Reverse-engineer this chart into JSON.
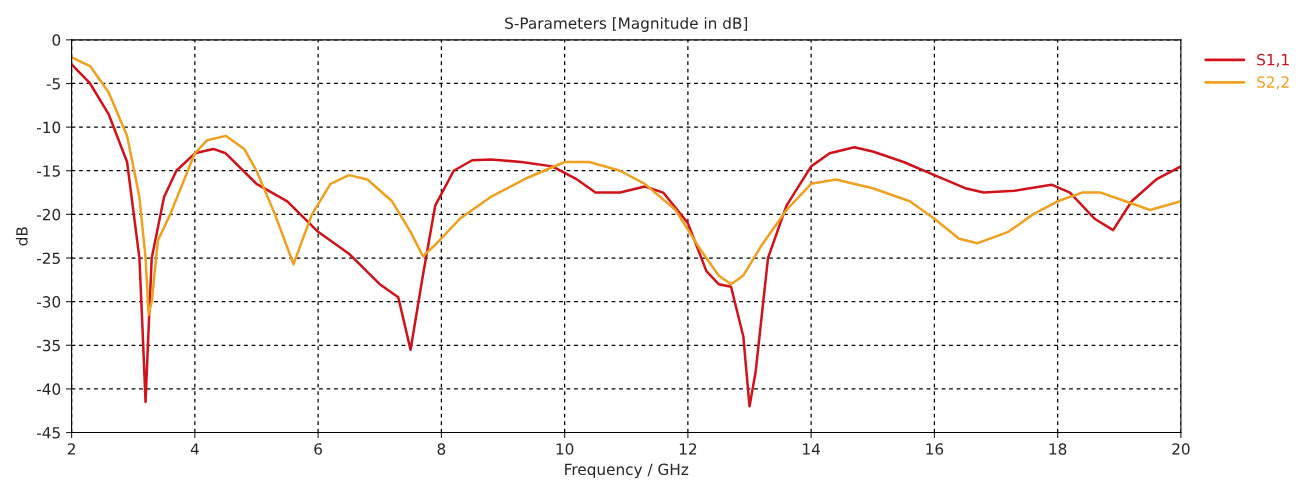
{
  "chart_data": {
    "type": "line",
    "title": "S-Parameters [Magnitude in dB]",
    "xlabel": "Frequency / GHz",
    "ylabel": "dB",
    "xlim": [
      2,
      20
    ],
    "xticks": [
      2,
      4,
      6,
      8,
      10,
      12,
      14,
      16,
      18,
      20
    ],
    "ylim": [
      -45,
      0
    ],
    "yticks": [
      -45,
      -40,
      -35,
      -30,
      -25,
      -20,
      -15,
      -10,
      -5,
      0
    ],
    "grid": true,
    "legend": "right",
    "marker": "none",
    "line_style": "solid",
    "series": [
      {
        "name": "S1,1",
        "color": "#d0121b",
        "x": [
          2.0,
          2.3,
          2.6,
          2.9,
          3.1,
          3.15,
          3.2,
          3.25,
          3.3,
          3.5,
          3.7,
          4.0,
          4.3,
          4.5,
          5.0,
          5.5,
          6.0,
          6.5,
          7.0,
          7.3,
          7.5,
          7.7,
          7.9,
          8.2,
          8.5,
          8.8,
          9.3,
          9.8,
          10.2,
          10.5,
          10.9,
          11.3,
          11.6,
          12.0,
          12.3,
          12.5,
          12.7,
          12.9,
          13.0,
          13.1,
          13.3,
          13.6,
          14.0,
          14.3,
          14.7,
          15.0,
          15.5,
          16.0,
          16.5,
          16.8,
          17.3,
          17.9,
          18.2,
          18.6,
          18.9,
          19.2,
          19.6,
          20.0
        ],
        "values": [
          -2.8,
          -5,
          -8.5,
          -14,
          -25,
          -33,
          -41.5,
          -33,
          -25,
          -18,
          -15,
          -13,
          -12.5,
          -13,
          -16.5,
          -18.5,
          -22,
          -24.5,
          -28,
          -29.5,
          -35.5,
          -27,
          -19,
          -15,
          -13.8,
          -13.7,
          -14,
          -14.5,
          -16,
          -17.5,
          -17.5,
          -16.8,
          -17.5,
          -21,
          -26.5,
          -28,
          -28.3,
          -34,
          -42,
          -38,
          -25,
          -19,
          -14.5,
          -13,
          -12.3,
          -12.8,
          -14,
          -15.5,
          -17,
          -17.5,
          -17.3,
          -16.6,
          -17.5,
          -20.5,
          -21.8,
          -18.5,
          -16,
          -14.5
        ]
      },
      {
        "name": "S2,2",
        "color": "#f0a020",
        "x": [
          2.0,
          2.3,
          2.6,
          2.9,
          3.1,
          3.2,
          3.25,
          3.3,
          3.4,
          3.6,
          3.8,
          4.0,
          4.2,
          4.5,
          4.8,
          5.0,
          5.3,
          5.6,
          5.9,
          6.2,
          6.5,
          6.8,
          7.2,
          7.5,
          7.7,
          7.9,
          8.3,
          8.8,
          9.4,
          10.0,
          10.4,
          10.9,
          11.3,
          11.8,
          12.2,
          12.5,
          12.7,
          12.9,
          13.2,
          13.6,
          14.0,
          14.4,
          15.0,
          15.6,
          16.0,
          16.4,
          16.7,
          17.2,
          17.6,
          18.0,
          18.4,
          18.7,
          19.1,
          19.5,
          20.0
        ],
        "values": [
          -2.0,
          -3.0,
          -6,
          -11,
          -18,
          -25,
          -31.5,
          -30,
          -23,
          -20,
          -16.5,
          -13,
          -11.5,
          -11,
          -12.5,
          -15,
          -20,
          -25.7,
          -20,
          -16.5,
          -15.5,
          -16,
          -18.5,
          -22,
          -24.8,
          -23.5,
          -20.5,
          -18,
          -15.8,
          -14,
          -14,
          -15,
          -16.5,
          -19.5,
          -24,
          -27,
          -28,
          -27,
          -23.5,
          -19.5,
          -16.5,
          -16,
          -17,
          -18.5,
          -20.5,
          -22.8,
          -23.3,
          -22,
          -20,
          -18.5,
          -17.5,
          -17.5,
          -18.5,
          -19.5,
          -18.5
        ]
      }
    ]
  }
}
